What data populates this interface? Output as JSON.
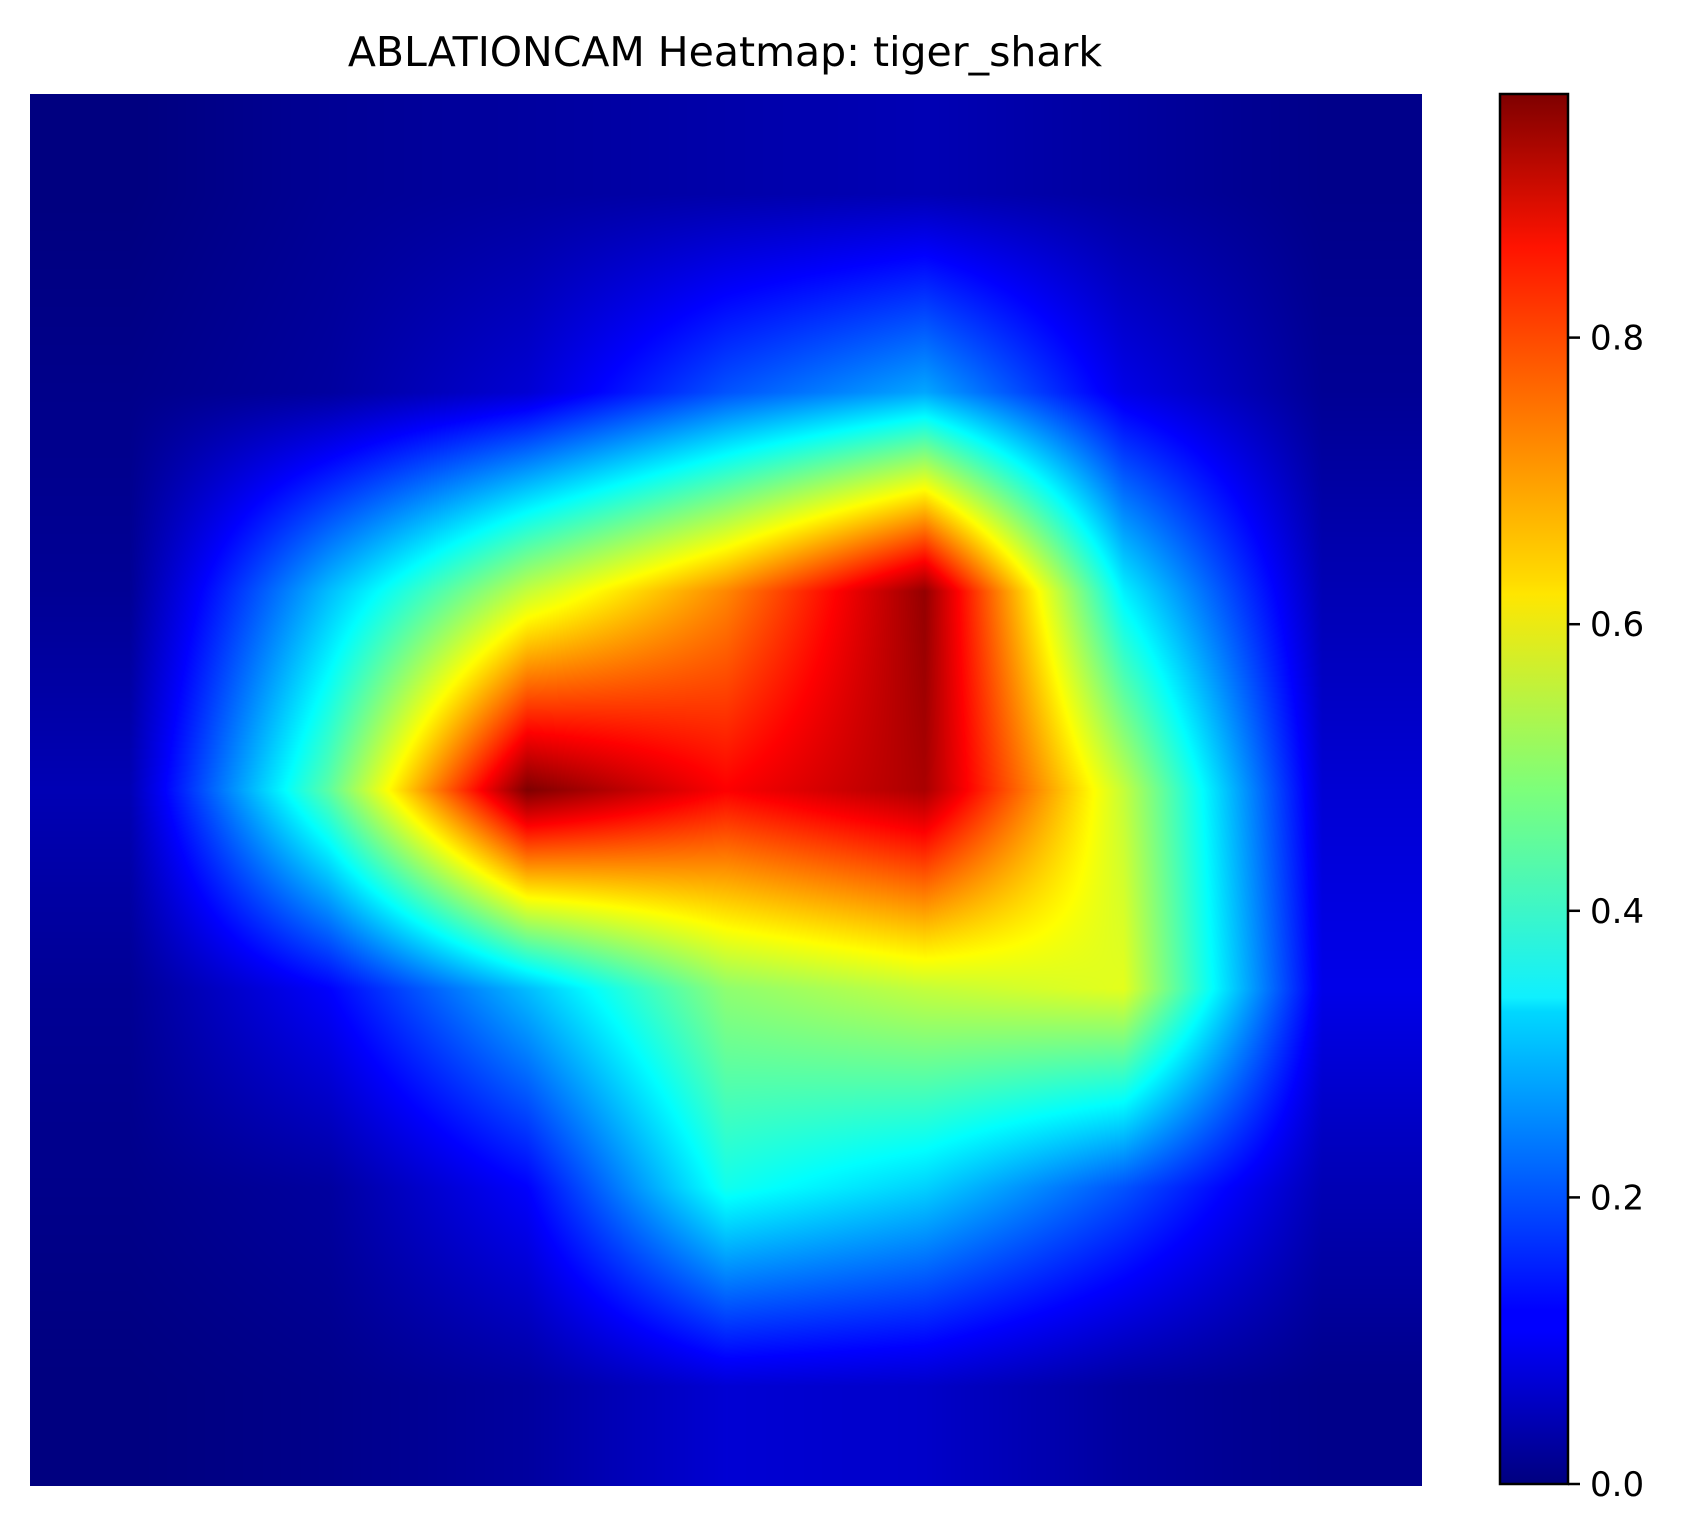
{
  "chart_data": {
    "type": "heatmap",
    "title": "ABLATIONCAM Heatmap: tiger_shark",
    "xlabel": "",
    "ylabel": "",
    "axes_visible": false,
    "colormap": "jet",
    "grid_size": [
      7,
      7
    ],
    "values": [
      [
        0.0,
        0.02,
        0.03,
        0.04,
        0.05,
        0.03,
        0.01
      ],
      [
        0.01,
        0.03,
        0.08,
        0.2,
        0.28,
        0.1,
        0.02
      ],
      [
        0.02,
        0.3,
        0.55,
        0.72,
        0.95,
        0.35,
        0.05
      ],
      [
        0.05,
        0.45,
        0.97,
        0.85,
        0.93,
        0.55,
        0.08
      ],
      [
        0.02,
        0.12,
        0.3,
        0.5,
        0.55,
        0.58,
        0.1
      ],
      [
        0.01,
        0.03,
        0.12,
        0.38,
        0.32,
        0.2,
        0.05
      ],
      [
        0.0,
        0.01,
        0.03,
        0.08,
        0.07,
        0.03,
        0.01
      ]
    ],
    "colorbar": {
      "range": [
        0.0,
        0.97
      ],
      "ticks": [
        0.0,
        0.2,
        0.4,
        0.6,
        0.8
      ],
      "tick_labels": [
        "0.0",
        "0.2",
        "0.4",
        "0.6",
        "0.8"
      ]
    }
  }
}
